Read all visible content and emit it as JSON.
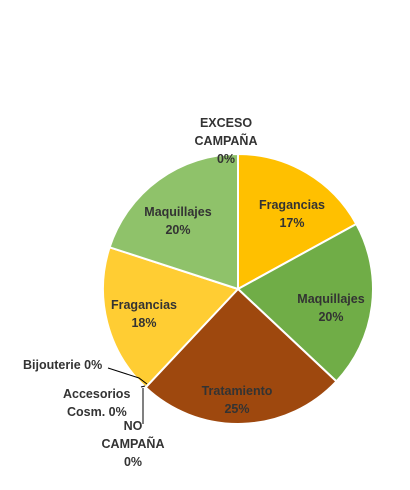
{
  "chart_data": {
    "type": "pie",
    "title": "",
    "slices": [
      {
        "label": "EXCESO CAMPAÑA",
        "percent_label": "0%",
        "value": 0,
        "color": "#b8b8b8"
      },
      {
        "label": "Fragancias",
        "percent_label": "17%",
        "value": 17,
        "color": "#ffc000"
      },
      {
        "label": "Maquillajes",
        "percent_label": "20%",
        "value": 20,
        "color": "#70ad47"
      },
      {
        "label": "Tratamiento",
        "percent_label": "25%",
        "value": 25,
        "color": "#9e480e"
      },
      {
        "label": "NO CAMPAÑA",
        "percent_label": "0%",
        "value": 0,
        "color": "#7f7f7f"
      },
      {
        "label": "Accesorios Cosm.",
        "percent_label": "0%",
        "value": 0,
        "color": "#a5a5a5"
      },
      {
        "label": "Bijouterie",
        "percent_label": "0%",
        "value": 0,
        "color": "#c9c9c9"
      },
      {
        "label": "Fragancias",
        "percent_label": "18%",
        "value": 18,
        "color": "#ffcd33"
      },
      {
        "label": "Maquillajes",
        "percent_label": "20%",
        "value": 20,
        "color": "#8fc26a"
      }
    ],
    "data_labels": {
      "exceso_line1": "EXCESO",
      "exceso_line2": "CAMPAÑA",
      "exceso_pct": "0%",
      "frag1_name": "Fragancias",
      "frag1_pct": "17%",
      "maq1_name": "Maquillajes",
      "maq1_pct": "20%",
      "trat_name": "Tratamiento",
      "trat_pct": "25%",
      "bij": "Bijouterie 0%",
      "acc_line1": "Accesorios",
      "acc_line2": "Cosm. 0%",
      "no_line1": "NO",
      "no_line2": "CAMPAÑA",
      "no_pct": "0%",
      "frag2_name": "Fragancias",
      "frag2_pct": "18%",
      "maq2_name": "Maquillajes",
      "maq2_pct": "20%"
    },
    "legend": "none",
    "start": "top",
    "direction": "clockwise"
  }
}
